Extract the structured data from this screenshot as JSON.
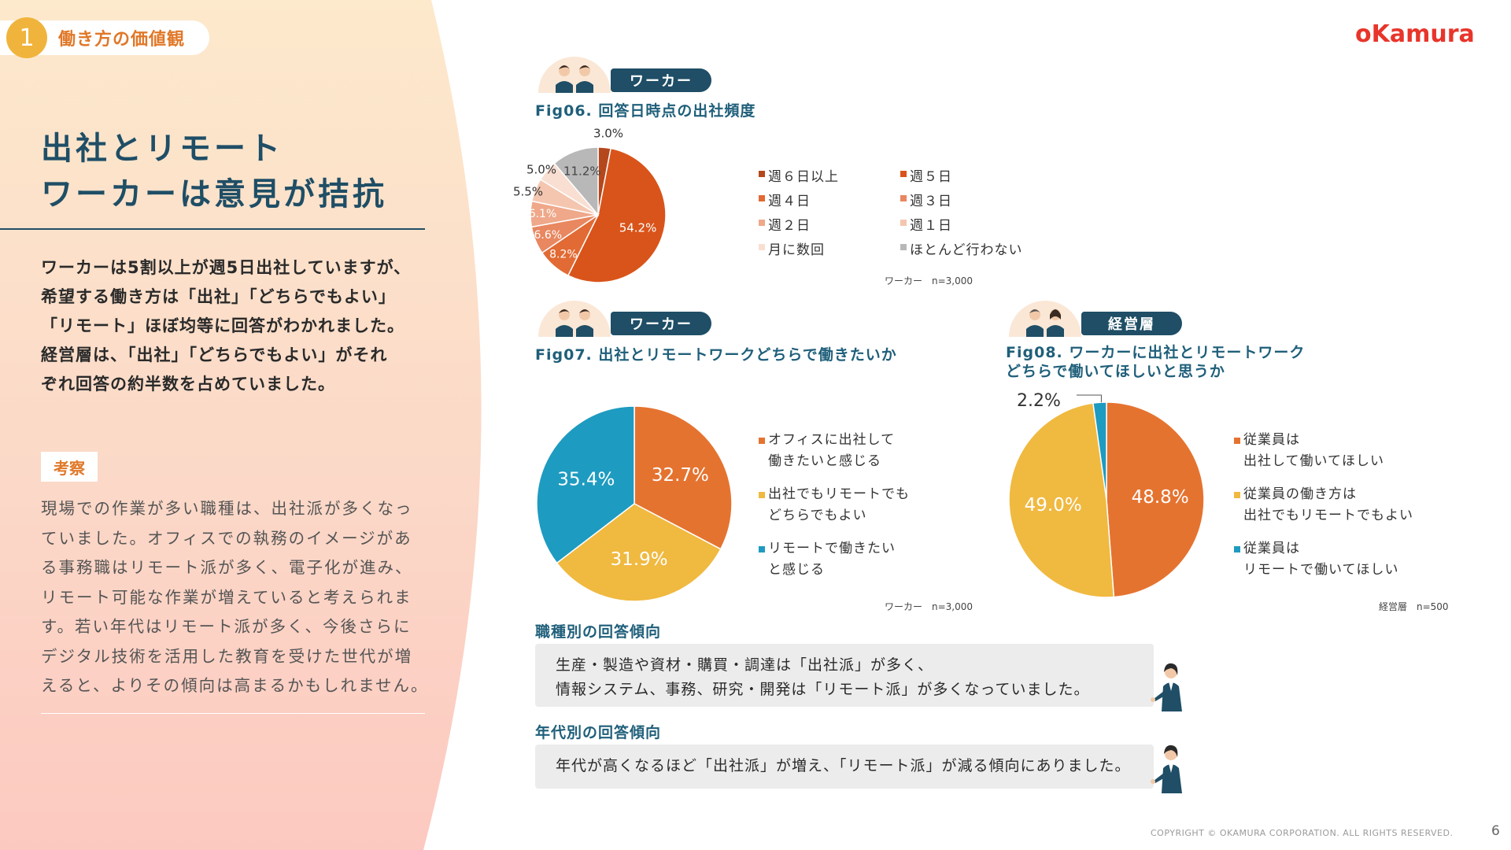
{
  "section": {
    "number": "1",
    "label": "働き方の価値観"
  },
  "title": {
    "line1": "出社とリモート",
    "line2": "ワーカーは意見が拮抗"
  },
  "summary": [
    "ワーカーは5割以上が週5日出社していますが、",
    "希望する働き方は「出社」「どちらでもよい」",
    "「リモート」ほぼ均等に回答がわかれました。",
    "経営層は、「出社」「どちらでもよい」がそれ",
    "ぞれ回答の約半数を占めていました。"
  ],
  "consideration": {
    "tag": "考察",
    "lines": [
      "現場での作業が多い職種は、出社派が多くなっ",
      "ていました。オフィスでの執務のイメージがあ",
      "る事務職はリモート派が多く、電子化が進み、",
      "リモート可能な作業が増えていると考えられま",
      "す。若い年代はリモート派が多く、今後さらに",
      "デジタル技術を活用した教育を受けた世代が増",
      "えると、よりその傾向は高まるかもしれません。"
    ]
  },
  "logo": "oKamura",
  "roles": {
    "worker": "ワーカー",
    "management": "経営層"
  },
  "chart_data": [
    {
      "type": "pie",
      "title": "Fig06. 回答日時点の出社頻度",
      "note": "ワーカー　n=3,000",
      "slices": [
        {
          "name": "週６日以上",
          "value": 3.0,
          "label": "3.0%",
          "color": "#b5471c"
        },
        {
          "name": "週５日",
          "value": 54.2,
          "label": "54.2%",
          "color": "#d9541a"
        },
        {
          "name": "週４日",
          "value": 8.2,
          "label": "8.2%",
          "color": "#e26a34"
        },
        {
          "name": "週３日",
          "value": 6.6,
          "label": "6.6%",
          "color": "#e88760"
        },
        {
          "name": "週２日",
          "value": 6.1,
          "label": "6.1%",
          "color": "#efa88a"
        },
        {
          "name": "週１日",
          "value": 5.5,
          "label": "5.5%",
          "color": "#f4c6b0"
        },
        {
          "name": "月に数回",
          "value": 5.0,
          "label": "5.0%",
          "color": "#f9dfd2"
        },
        {
          "name": "ほとんど行わない",
          "value": 11.2,
          "label": "11.2%",
          "color": "#b8b8b8"
        }
      ]
    },
    {
      "type": "pie",
      "title": "Fig07. 出社とリモートワークどちらで働きたいか",
      "note": "ワーカー　n=3,000",
      "slices": [
        {
          "name": "オフィスに出社して\n働きたいと感じる",
          "value": 32.7,
          "label": "32.7%",
          "color": "#e57330"
        },
        {
          "name": "出社でもリモートでも\nどちらでもよい",
          "value": 31.9,
          "label": "31.9%",
          "color": "#f0b940"
        },
        {
          "name": "リモートで働きたい\nと感じる",
          "value": 35.4,
          "label": "35.4%",
          "color": "#1e9bc0"
        }
      ]
    },
    {
      "type": "pie",
      "title": "Fig08. ワーカーに出社とリモートワーク\nどちらで働いてほしいと思うか",
      "note": "経営層　n=500",
      "slices": [
        {
          "name": "従業員は\n出社して働いてほしい",
          "value": 48.8,
          "label": "48.8%",
          "color": "#e57330"
        },
        {
          "name": "従業員の働き方は\n出社でもリモートでもよい",
          "value": 49.0,
          "label": "49.0%",
          "color": "#f0b940"
        },
        {
          "name": "従業員は\nリモートで働いてほしい",
          "value": 2.2,
          "label": "2.2%",
          "color": "#1e9bc0"
        }
      ]
    }
  ],
  "trends": {
    "occupation": {
      "label": "職種別の回答傾向",
      "lines": [
        "生産・製造や資材・購買・調達は「出社派」が多く、",
        "情報システム、事務、研究・開発は「リモート派」が多くなっていました。"
      ]
    },
    "age": {
      "label": "年代別の回答傾向",
      "lines": [
        "年代が高くなるほど「出社派」が増え、「リモート派」が減る傾向にありました。"
      ]
    }
  },
  "footer": "COPYRIGHT © OKAMURA CORPORATION. ALL RIGHTS RESERVED.",
  "page_number": "6"
}
